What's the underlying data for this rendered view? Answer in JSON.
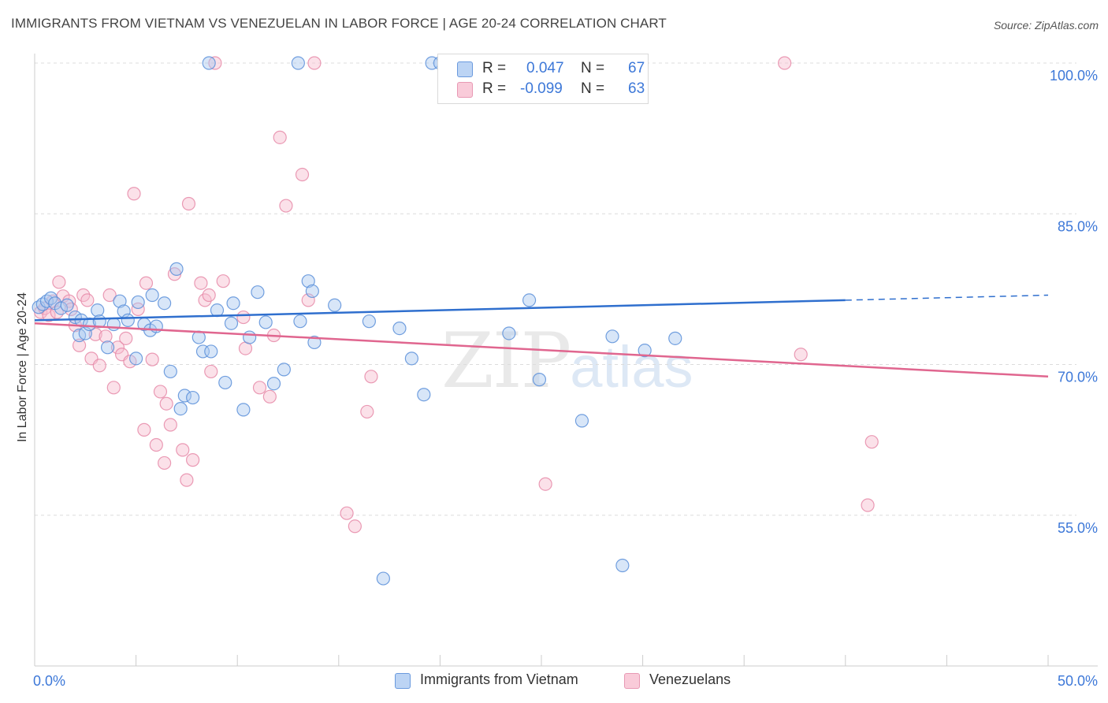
{
  "header": {
    "title": "IMMIGRANTS FROM VIETNAM VS VENEZUELAN IN LABOR FORCE | AGE 20-24 CORRELATION CHART",
    "source": "Source: ZipAtlas.com"
  },
  "legend_top": {
    "rows": [
      {
        "r_label": "R =",
        "r_value": "0.047",
        "n_label": "N =",
        "n_value": "67"
      },
      {
        "r_label": "R =",
        "r_value": "-0.099",
        "n_label": "N =",
        "n_value": "63"
      }
    ]
  },
  "bottom_legend": [
    {
      "label": "Immigrants from Vietnam"
    },
    {
      "label": "Venezuelans"
    }
  ],
  "watermark": {
    "zip": "ZIP",
    "atlas": "atlas"
  },
  "chart_data": {
    "type": "scatter",
    "title": "IMMIGRANTS FROM VIETNAM VS VENEZUELAN IN LABOR FORCE | AGE 20-24 CORRELATION CHART",
    "ylabel": "In Labor Force | Age 20-24",
    "xlabel": "",
    "xlim": [
      0,
      50
    ],
    "ylim": [
      40,
      100
    ],
    "x_tick_labels": [
      "0.0%",
      "50.0%"
    ],
    "y_ticks": [
      55,
      70,
      85,
      100
    ],
    "y_tick_labels": [
      "55.0%",
      "70.0%",
      "85.0%",
      "100.0%"
    ],
    "grid": true,
    "legend_position": "top-center",
    "colors": {
      "vietnam_fill": "#a9c8f0",
      "vietnam_stroke": "#5b8fd9",
      "vietnam_line": "#2f6fce",
      "venezuelan_fill": "#f7bccf",
      "venezuelan_stroke": "#e68aa8",
      "venezuelan_line": "#e0668f",
      "tick_label": "#3d78d8"
    },
    "series": [
      {
        "name": "Immigrants from Vietnam",
        "r": 0.047,
        "n": 67,
        "trend": {
          "x0": 0,
          "y0": 74.4,
          "x1": 40,
          "y1": 76.4,
          "dashed_to_x": 50,
          "dashed_to_y": 76.9
        },
        "points": [
          [
            0.2,
            75.7
          ],
          [
            0.4,
            76.0
          ],
          [
            0.6,
            76.3
          ],
          [
            0.8,
            76.6
          ],
          [
            1.0,
            76.1
          ],
          [
            1.3,
            75.6
          ],
          [
            1.6,
            75.9
          ],
          [
            2.0,
            74.7
          ],
          [
            2.2,
            72.9
          ],
          [
            2.3,
            74.4
          ],
          [
            2.5,
            73.1
          ],
          [
            2.7,
            74.0
          ],
          [
            3.1,
            75.4
          ],
          [
            3.2,
            74.3
          ],
          [
            3.6,
            71.7
          ],
          [
            3.9,
            74.0
          ],
          [
            4.2,
            76.3
          ],
          [
            4.4,
            75.3
          ],
          [
            4.6,
            74.4
          ],
          [
            5.0,
            70.6
          ],
          [
            5.1,
            76.2
          ],
          [
            5.4,
            74.0
          ],
          [
            5.7,
            73.4
          ],
          [
            5.8,
            76.9
          ],
          [
            6.0,
            73.8
          ],
          [
            6.4,
            76.1
          ],
          [
            6.7,
            69.3
          ],
          [
            7.0,
            79.5
          ],
          [
            7.2,
            65.6
          ],
          [
            7.4,
            66.9
          ],
          [
            7.8,
            66.7
          ],
          [
            8.1,
            72.7
          ],
          [
            8.3,
            71.3
          ],
          [
            8.7,
            71.3
          ],
          [
            9.0,
            75.4
          ],
          [
            9.4,
            68.2
          ],
          [
            9.7,
            74.1
          ],
          [
            9.8,
            76.1
          ],
          [
            10.3,
            65.5
          ],
          [
            10.6,
            72.7
          ],
          [
            11.0,
            77.2
          ],
          [
            11.4,
            74.2
          ],
          [
            11.8,
            68.1
          ],
          [
            12.3,
            69.5
          ],
          [
            13.1,
            74.3
          ],
          [
            13.5,
            78.3
          ],
          [
            13.7,
            77.3
          ],
          [
            13.8,
            72.2
          ],
          [
            14.8,
            75.9
          ],
          [
            16.5,
            74.3
          ],
          [
            17.2,
            48.7
          ],
          [
            18.0,
            73.6
          ],
          [
            18.6,
            70.6
          ],
          [
            19.2,
            67.0
          ],
          [
            19.6,
            100.0
          ],
          [
            20.0,
            100.0
          ],
          [
            23.4,
            73.1
          ],
          [
            24.4,
            76.4
          ],
          [
            24.9,
            68.5
          ],
          [
            27.0,
            64.4
          ],
          [
            28.3,
            100.0
          ],
          [
            28.5,
            72.8
          ],
          [
            29.0,
            50.0
          ],
          [
            30.1,
            71.4
          ],
          [
            31.6,
            72.6
          ],
          [
            8.6,
            100.0
          ],
          [
            13.0,
            100.0
          ]
        ]
      },
      {
        "name": "Venezuelans",
        "r": -0.099,
        "n": 63,
        "trend": {
          "x0": 0,
          "y0": 74.1,
          "x1": 50,
          "y1": 68.8
        },
        "points": [
          [
            0.3,
            75.2
          ],
          [
            0.5,
            75.6
          ],
          [
            0.7,
            74.9
          ],
          [
            0.9,
            76.3
          ],
          [
            1.1,
            75.2
          ],
          [
            1.2,
            78.2
          ],
          [
            1.4,
            76.8
          ],
          [
            1.7,
            76.3
          ],
          [
            1.8,
            75.5
          ],
          [
            2.0,
            73.9
          ],
          [
            2.2,
            71.9
          ],
          [
            2.4,
            76.9
          ],
          [
            2.6,
            76.4
          ],
          [
            2.8,
            70.6
          ],
          [
            3.0,
            73.0
          ],
          [
            3.2,
            69.9
          ],
          [
            3.5,
            72.8
          ],
          [
            3.7,
            76.9
          ],
          [
            3.9,
            67.7
          ],
          [
            4.1,
            71.7
          ],
          [
            4.3,
            71.0
          ],
          [
            4.5,
            72.6
          ],
          [
            4.7,
            70.3
          ],
          [
            4.9,
            87.0
          ],
          [
            5.1,
            75.5
          ],
          [
            5.4,
            63.5
          ],
          [
            5.5,
            78.1
          ],
          [
            5.8,
            70.5
          ],
          [
            6.0,
            62.0
          ],
          [
            6.2,
            67.3
          ],
          [
            6.4,
            60.2
          ],
          [
            6.5,
            66.1
          ],
          [
            6.7,
            64.0
          ],
          [
            6.9,
            79.0
          ],
          [
            7.3,
            61.5
          ],
          [
            7.5,
            58.5
          ],
          [
            7.6,
            86.0
          ],
          [
            7.8,
            60.5
          ],
          [
            8.2,
            78.1
          ],
          [
            8.4,
            76.4
          ],
          [
            8.6,
            76.9
          ],
          [
            8.7,
            69.3
          ],
          [
            9.3,
            78.3
          ],
          [
            10.3,
            74.7
          ],
          [
            10.4,
            71.6
          ],
          [
            11.1,
            67.7
          ],
          [
            11.6,
            66.8
          ],
          [
            11.8,
            72.9
          ],
          [
            12.1,
            92.6
          ],
          [
            12.4,
            85.8
          ],
          [
            13.2,
            88.9
          ],
          [
            13.5,
            76.4
          ],
          [
            15.4,
            55.2
          ],
          [
            15.8,
            53.9
          ],
          [
            16.4,
            65.3
          ],
          [
            16.6,
            68.8
          ],
          [
            8.9,
            100.0
          ],
          [
            13.8,
            100.0
          ],
          [
            25.2,
            58.1
          ],
          [
            37.8,
            71.0
          ],
          [
            41.1,
            56.0
          ],
          [
            41.3,
            62.3
          ],
          [
            37.0,
            100.0
          ]
        ]
      }
    ]
  }
}
